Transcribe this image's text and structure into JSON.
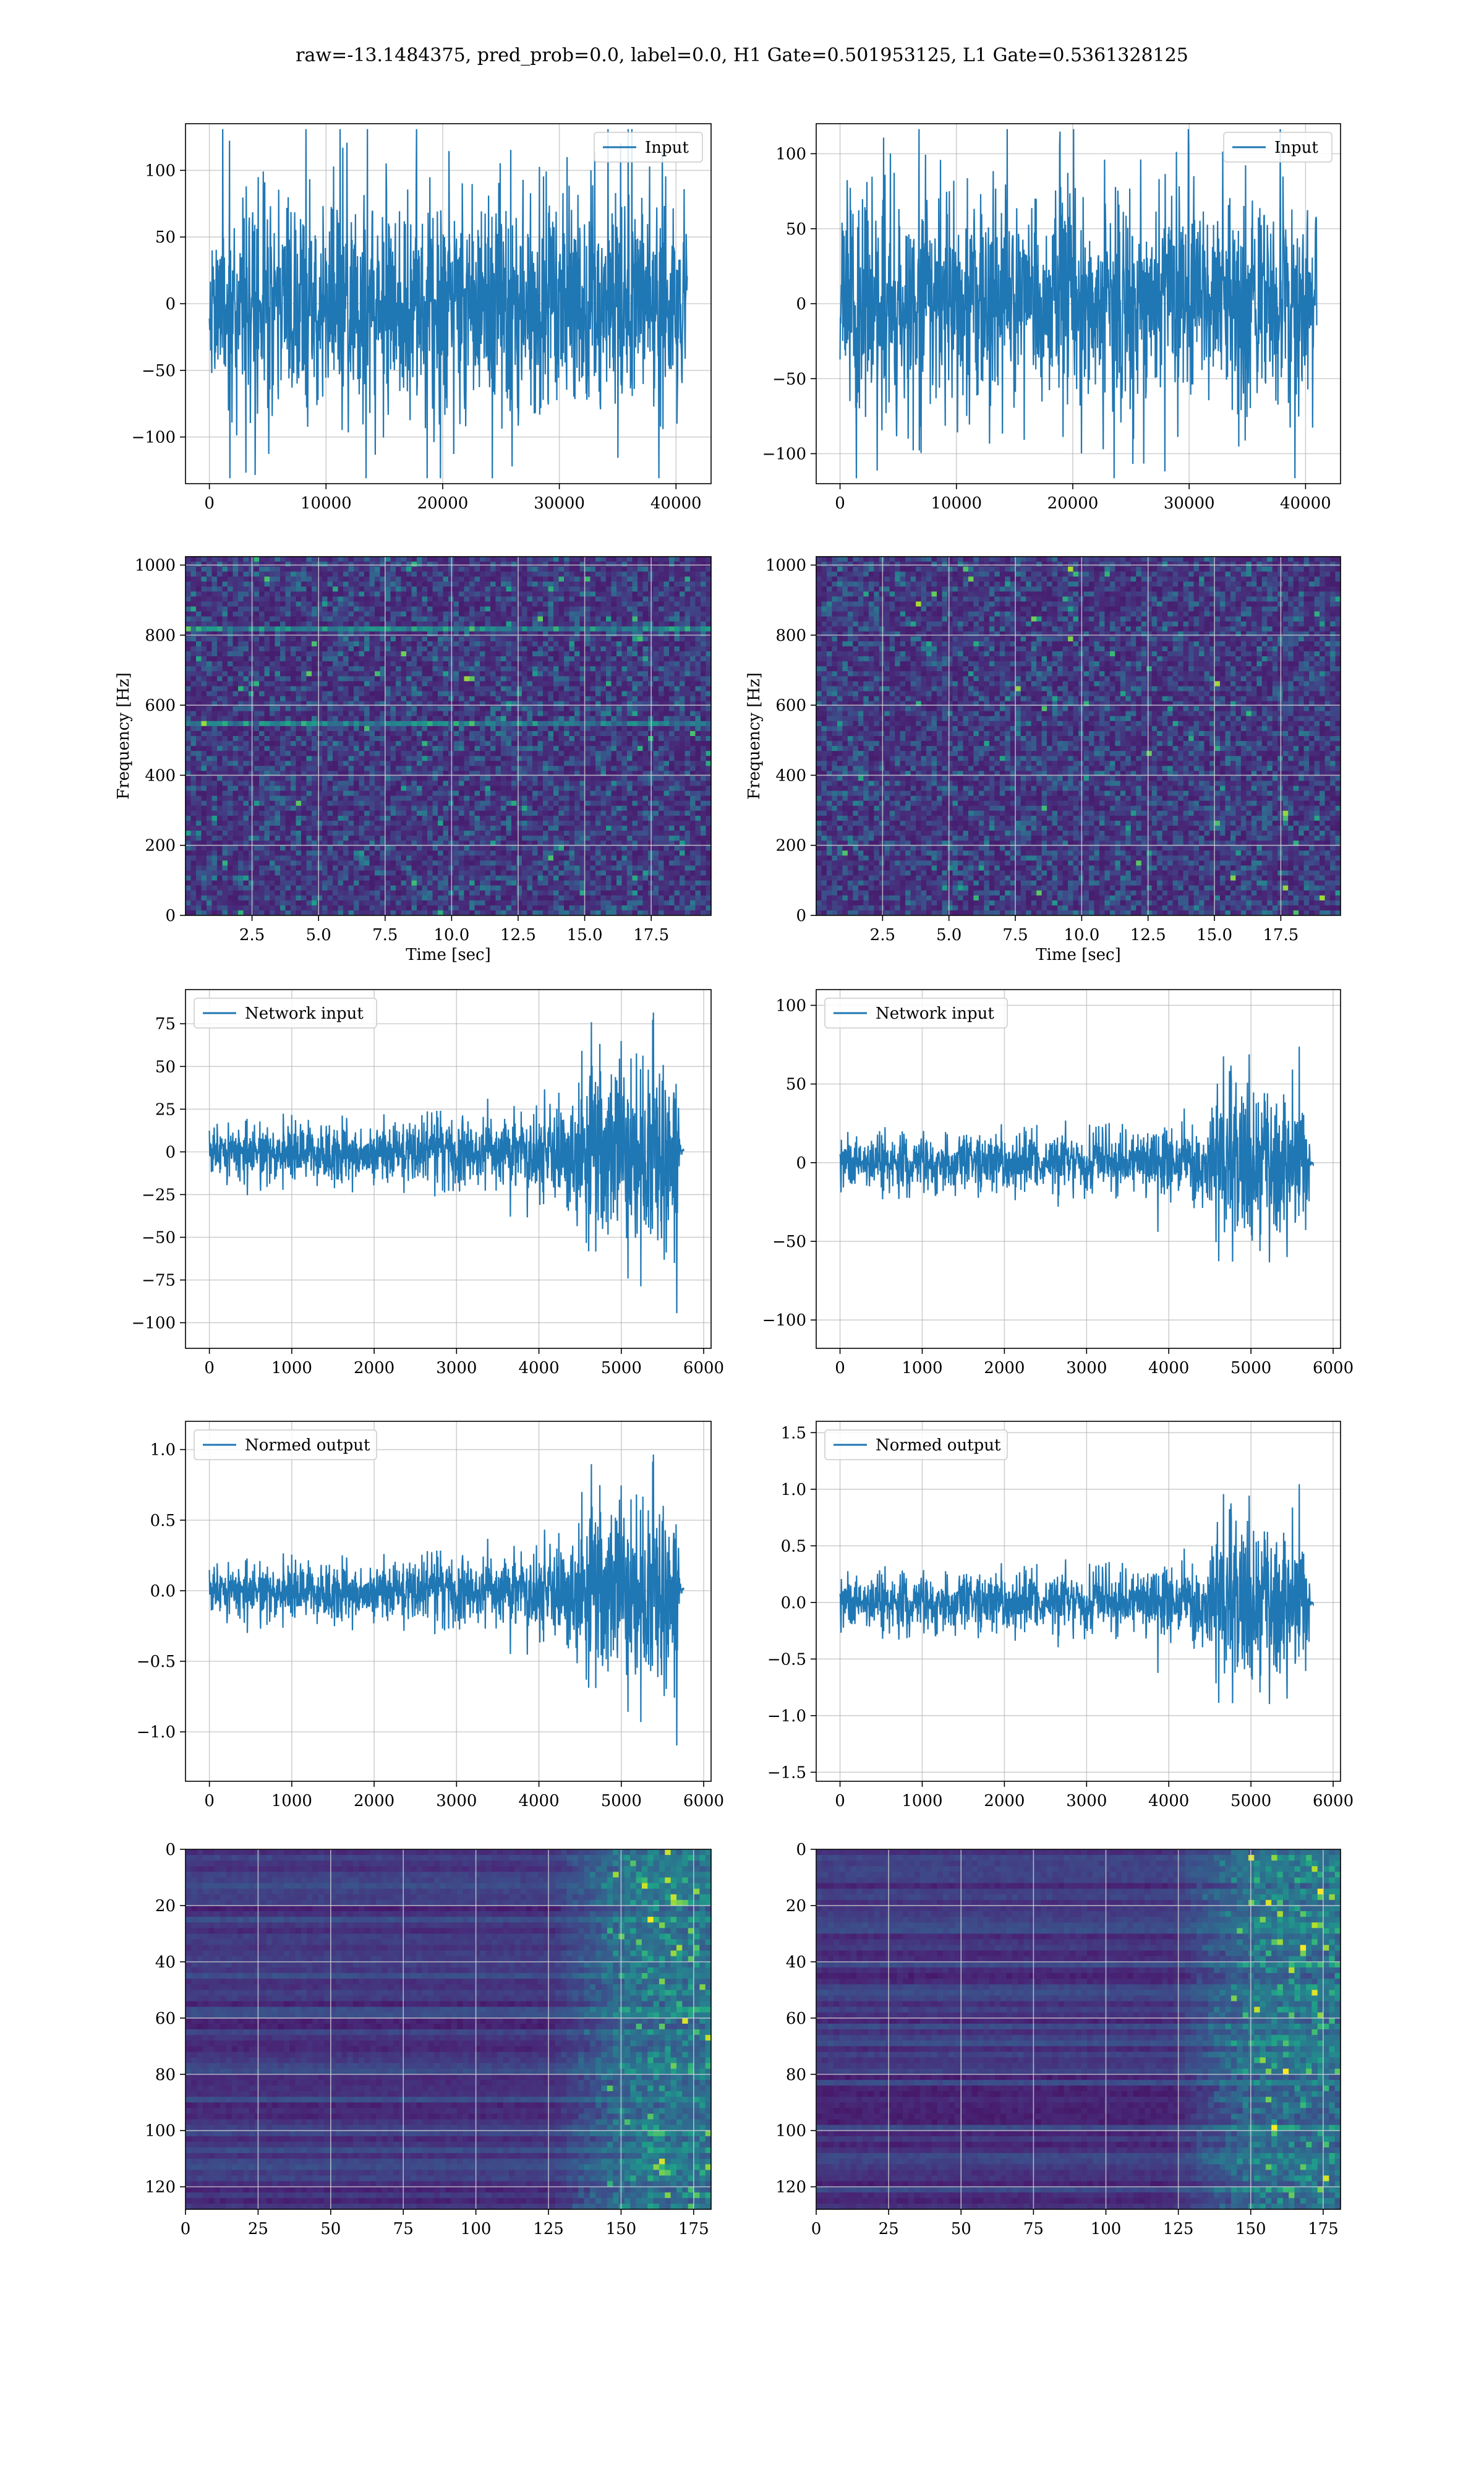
{
  "figure": {
    "title": "raw=-13.1484375, pred_prob=0.0, label=0.0, H1 Gate=0.501953125, L1 Gate=0.5361328125"
  },
  "colors": {
    "line": "#1f77b4",
    "grid": "#b0b0b0",
    "axis": "#000000"
  },
  "chart_data": [
    {
      "id": "h1-input",
      "type": "line",
      "column": "left",
      "row": 1,
      "legend": "Input",
      "legend_loc": "upper-right",
      "xlim": [
        -2048,
        43008
      ],
      "ylim": [
        -135,
        135
      ],
      "xticks": [
        0,
        10000,
        20000,
        30000,
        40000
      ],
      "xtick_labels": [
        "0",
        "10000",
        "20000",
        "30000",
        "40000"
      ],
      "yticks": [
        -100,
        -50,
        0,
        50,
        100
      ],
      "ytick_labels": [
        "−100",
        "−50",
        "0",
        "50",
        "100"
      ],
      "signal": {
        "x_range": [
          0,
          40960
        ],
        "envelope": [
          [
            0,
            1
          ]
        ],
        "amp": 50,
        "spike": 78,
        "seed": 11
      },
      "grid": true
    },
    {
      "id": "l1-input",
      "type": "line",
      "column": "right",
      "row": 1,
      "legend": "Input",
      "legend_loc": "upper-right",
      "xlim": [
        -2048,
        43008
      ],
      "ylim": [
        -120,
        120
      ],
      "xticks": [
        0,
        10000,
        20000,
        30000,
        40000
      ],
      "xtick_labels": [
        "0",
        "10000",
        "20000",
        "30000",
        "40000"
      ],
      "yticks": [
        -100,
        -50,
        0,
        50,
        100
      ],
      "ytick_labels": [
        "−100",
        "−50",
        "0",
        "50",
        "100"
      ],
      "signal": {
        "x_range": [
          0,
          40960
        ],
        "envelope": [
          [
            0,
            1
          ]
        ],
        "amp": 42,
        "spike": 62,
        "seed": 23
      },
      "grid": true
    },
    {
      "id": "h1-spectrogram",
      "type": "heatmap",
      "column": "left",
      "row": 2,
      "xlabel": "Time [sec]",
      "ylabel": "Frequency [Hz]",
      "xlim": [
        0,
        19.75
      ],
      "ylim": [
        0,
        1024
      ],
      "xticks": [
        2.5,
        5.0,
        7.5,
        10.0,
        12.5,
        15.0,
        17.5
      ],
      "xtick_labels": [
        "2.5",
        "5.0",
        "7.5",
        "10.0",
        "12.5",
        "15.0",
        "17.5"
      ],
      "yticks": [
        0,
        200,
        400,
        600,
        800,
        1000
      ],
      "ytick_labels": [
        "0",
        "200",
        "400",
        "600",
        "800",
        "1000"
      ],
      "bands_hz": [
        830,
        560
      ],
      "colormap": "viridis",
      "seed": 37,
      "grid": true
    },
    {
      "id": "l1-spectrogram",
      "type": "heatmap",
      "column": "right",
      "row": 2,
      "xlabel": "Time [sec]",
      "ylabel": "Frequency [Hz]",
      "xlim": [
        0,
        19.75
      ],
      "ylim": [
        0,
        1024
      ],
      "xticks": [
        2.5,
        5.0,
        7.5,
        10.0,
        12.5,
        15.0,
        17.5
      ],
      "xtick_labels": [
        "2.5",
        "5.0",
        "7.5",
        "10.0",
        "12.5",
        "15.0",
        "17.5"
      ],
      "yticks": [
        0,
        200,
        400,
        600,
        800,
        1000
      ],
      "ytick_labels": [
        "0",
        "200",
        "400",
        "600",
        "800",
        "1000"
      ],
      "bands_hz": [],
      "colormap": "viridis",
      "seed": 41,
      "grid": true
    },
    {
      "id": "h1-network-input",
      "type": "line",
      "column": "left",
      "row": 3,
      "legend": "Network input",
      "legend_loc": "upper-left",
      "xlim": [
        -290,
        6090
      ],
      "ylim": [
        -115,
        95
      ],
      "xticks": [
        0,
        1000,
        2000,
        3000,
        4000,
        5000,
        6000
      ],
      "xtick_labels": [
        "0",
        "1000",
        "2000",
        "3000",
        "4000",
        "5000",
        "6000"
      ],
      "yticks": [
        -100,
        -75,
        -50,
        -25,
        0,
        25,
        50,
        75
      ],
      "ytick_labels": [
        "−100",
        "−75",
        "−50",
        "−25",
        "0",
        "25",
        "50",
        "75"
      ],
      "signal": {
        "x_range": [
          0,
          5760
        ],
        "envelope": [
          [
            0,
            0.2
          ],
          [
            3300,
            0.22
          ],
          [
            4300,
            0.3
          ],
          [
            4700,
            0.7
          ],
          [
            5000,
            0.6
          ],
          [
            5700,
            0.6
          ],
          [
            5720,
            0.02
          ],
          [
            5800,
            0.02
          ]
        ],
        "amp": 55,
        "spike": 40,
        "seed": 53
      },
      "grid": true
    },
    {
      "id": "l1-network-input",
      "type": "line",
      "column": "right",
      "row": 3,
      "legend": "Network input",
      "legend_loc": "upper-left",
      "xlim": [
        -290,
        6090
      ],
      "ylim": [
        -118,
        110
      ],
      "xticks": [
        0,
        1000,
        2000,
        3000,
        4000,
        5000,
        6000
      ],
      "xtick_labels": [
        "0",
        "1000",
        "2000",
        "3000",
        "4000",
        "5000",
        "6000"
      ],
      "yticks": [
        -100,
        -50,
        0,
        50,
        100
      ],
      "ytick_labels": [
        "−100",
        "−50",
        "0",
        "50",
        "100"
      ],
      "signal": {
        "x_range": [
          0,
          5760
        ],
        "envelope": [
          [
            0,
            0.18
          ],
          [
            3300,
            0.2
          ],
          [
            4500,
            0.3
          ],
          [
            4700,
            0.65
          ],
          [
            5000,
            0.55
          ],
          [
            5700,
            0.5
          ],
          [
            5720,
            0.02
          ],
          [
            5800,
            0.02
          ]
        ],
        "amp": 60,
        "spike": 45,
        "seed": 61
      },
      "grid": true
    },
    {
      "id": "h1-normed-output",
      "type": "line",
      "column": "left",
      "row": 4,
      "legend": "Normed output",
      "legend_loc": "upper-left",
      "xlim": [
        -290,
        6090
      ],
      "ylim": [
        -1.35,
        1.2
      ],
      "xticks": [
        0,
        1000,
        2000,
        3000,
        4000,
        5000,
        6000
      ],
      "xtick_labels": [
        "0",
        "1000",
        "2000",
        "3000",
        "4000",
        "5000",
        "6000"
      ],
      "yticks": [
        -1.0,
        -0.5,
        0.0,
        0.5,
        1.0
      ],
      "ytick_labels": [
        "−1.0",
        "−0.5",
        "0.0",
        "0.5",
        "1.0"
      ],
      "signal": {
        "x_range": [
          0,
          5760
        ],
        "envelope": [
          [
            0,
            0.2
          ],
          [
            3300,
            0.22
          ],
          [
            4300,
            0.3
          ],
          [
            4700,
            0.7
          ],
          [
            5000,
            0.6
          ],
          [
            5700,
            0.6
          ],
          [
            5720,
            0.02
          ],
          [
            5800,
            0.02
          ]
        ],
        "amp": 0.65,
        "spike": 0.45,
        "seed": 53
      },
      "grid": true
    },
    {
      "id": "l1-normed-output",
      "type": "line",
      "column": "right",
      "row": 4,
      "legend": "Normed output",
      "legend_loc": "upper-left",
      "xlim": [
        -290,
        6090
      ],
      "ylim": [
        -1.58,
        1.6
      ],
      "xticks": [
        0,
        1000,
        2000,
        3000,
        4000,
        5000,
        6000
      ],
      "xtick_labels": [
        "0",
        "1000",
        "2000",
        "3000",
        "4000",
        "5000",
        "6000"
      ],
      "yticks": [
        -1.5,
        -1.0,
        -0.5,
        0.0,
        0.5,
        1.0,
        1.5
      ],
      "ytick_labels": [
        "−1.5",
        "−1.0",
        "−0.5",
        "0.0",
        "0.5",
        "1.0",
        "1.5"
      ],
      "signal": {
        "x_range": [
          0,
          5760
        ],
        "envelope": [
          [
            0,
            0.18
          ],
          [
            3300,
            0.2
          ],
          [
            4500,
            0.3
          ],
          [
            4700,
            0.65
          ],
          [
            5000,
            0.55
          ],
          [
            5700,
            0.5
          ],
          [
            5720,
            0.02
          ],
          [
            5800,
            0.02
          ]
        ],
        "amp": 0.85,
        "spike": 0.6,
        "seed": 61
      },
      "grid": true
    },
    {
      "id": "h1-feature-map",
      "type": "heatmap",
      "column": "left",
      "row": 5,
      "xlim": [
        0,
        181
      ],
      "ylim": [
        128,
        0
      ],
      "xticks": [
        0,
        25,
        50,
        75,
        100,
        125,
        150,
        175
      ],
      "xtick_labels": [
        "0",
        "25",
        "50",
        "75",
        "100",
        "125",
        "150",
        "175"
      ],
      "yticks": [
        0,
        20,
        40,
        60,
        80,
        100,
        120
      ],
      "ytick_labels": [
        "0",
        "20",
        "40",
        "60",
        "80",
        "100",
        "120"
      ],
      "onset_col": 125,
      "colormap": "viridis",
      "seed": 71,
      "grid": true
    },
    {
      "id": "l1-feature-map",
      "type": "heatmap",
      "column": "right",
      "row": 5,
      "xlim": [
        0,
        181
      ],
      "ylim": [
        128,
        0
      ],
      "xticks": [
        0,
        25,
        50,
        75,
        100,
        125,
        150,
        175
      ],
      "xtick_labels": [
        "0",
        "25",
        "50",
        "75",
        "100",
        "125",
        "150",
        "175"
      ],
      "yticks": [
        0,
        20,
        40,
        60,
        80,
        100,
        120
      ],
      "ytick_labels": [
        "0",
        "20",
        "40",
        "60",
        "80",
        "100",
        "120"
      ],
      "onset_col": 122,
      "colormap": "viridis",
      "seed": 83,
      "grid": true
    }
  ]
}
